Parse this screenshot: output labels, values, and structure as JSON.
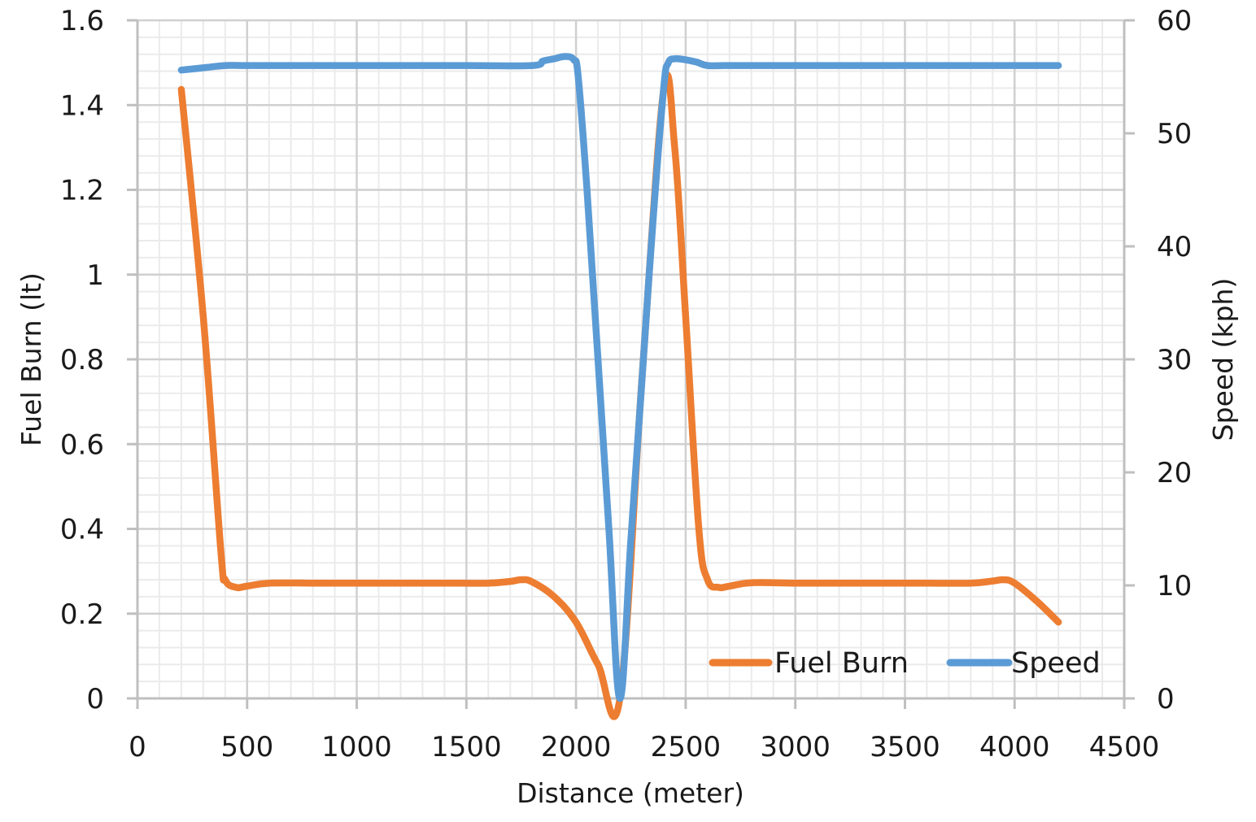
{
  "chart_data": {
    "type": "line",
    "title": "",
    "xlabel": "Distance (meter)",
    "ylabel": "Fuel Burn (lt)",
    "y2label": "Speed (kph)",
    "xlim": [
      0,
      4500
    ],
    "ylim": [
      0,
      1.6
    ],
    "y2lim": [
      0,
      60
    ],
    "x_ticks": [
      "0",
      "500",
      "1000",
      "1500",
      "2000",
      "2500",
      "3000",
      "3500",
      "4000",
      "4500"
    ],
    "y_ticks": [
      "0",
      "0.2",
      "0.4",
      "0.6",
      "0.8",
      "1",
      "1.2",
      "1.4",
      "1.6"
    ],
    "y2_ticks": [
      "0",
      "10",
      "20",
      "30",
      "40",
      "50",
      "60"
    ],
    "grid": {
      "major": true,
      "minor": true
    },
    "legend_position": "lower right, inside plot",
    "series": [
      {
        "name": "Fuel Burn",
        "axis": "left",
        "color": "#ED7D31",
        "x": [
          200,
          300,
          380,
          400,
          450,
          500,
          600,
          800,
          1000,
          1200,
          1400,
          1600,
          1700,
          1750,
          1800,
          1900,
          2000,
          2100,
          2200,
          2300,
          2400,
          2450,
          2500,
          2560,
          2600,
          2650,
          2700,
          2800,
          3000,
          3200,
          3400,
          3600,
          3800,
          3900,
          3950,
          4000,
          4100,
          4200
        ],
        "values": [
          1.437,
          0.9,
          0.35,
          0.28,
          0.262,
          0.265,
          0.272,
          0.272,
          0.272,
          0.272,
          0.272,
          0.272,
          0.276,
          0.28,
          0.275,
          0.24,
          0.18,
          0.08,
          0.0,
          0.75,
          1.437,
          1.3,
          0.9,
          0.4,
          0.28,
          0.262,
          0.265,
          0.273,
          0.272,
          0.272,
          0.272,
          0.272,
          0.272,
          0.277,
          0.28,
          0.272,
          0.23,
          0.18
        ]
      },
      {
        "name": "Speed",
        "axis": "right",
        "color": "#5B9BD5",
        "x": [
          200,
          300,
          400,
          500,
          700,
          1000,
          1500,
          1800,
          1850,
          1900,
          1950,
          1990,
          2010,
          2050,
          2100,
          2150,
          2200,
          2250,
          2300,
          2350,
          2400,
          2420,
          2450,
          2500,
          2550,
          2600,
          2700,
          3000,
          3500,
          4000,
          4200
        ],
        "values": [
          55.6,
          55.8,
          56.0,
          56.0,
          56.0,
          56.0,
          56.0,
          56.0,
          56.4,
          56.6,
          56.8,
          56.5,
          55.0,
          45.0,
          30.0,
          15.0,
          0.0,
          14.0,
          28.0,
          42.0,
          54.0,
          56.2,
          56.6,
          56.5,
          56.3,
          56.0,
          56.0,
          56.0,
          56.0,
          56.0,
          56.0
        ]
      }
    ]
  },
  "axes": {
    "x_title": "Distance (meter)",
    "y_left_title": "Fuel Burn (lt)",
    "y_right_title": "Speed (kph)"
  },
  "legend": {
    "items": [
      {
        "label": "Fuel Burn",
        "color": "#ED7D31"
      },
      {
        "label": "Speed",
        "color": "#5B9BD5"
      }
    ]
  },
  "colors": {
    "major_grid": "#D0D0D0",
    "minor_grid": "#EBEBEB",
    "axis_line": "#BFBFBF"
  }
}
